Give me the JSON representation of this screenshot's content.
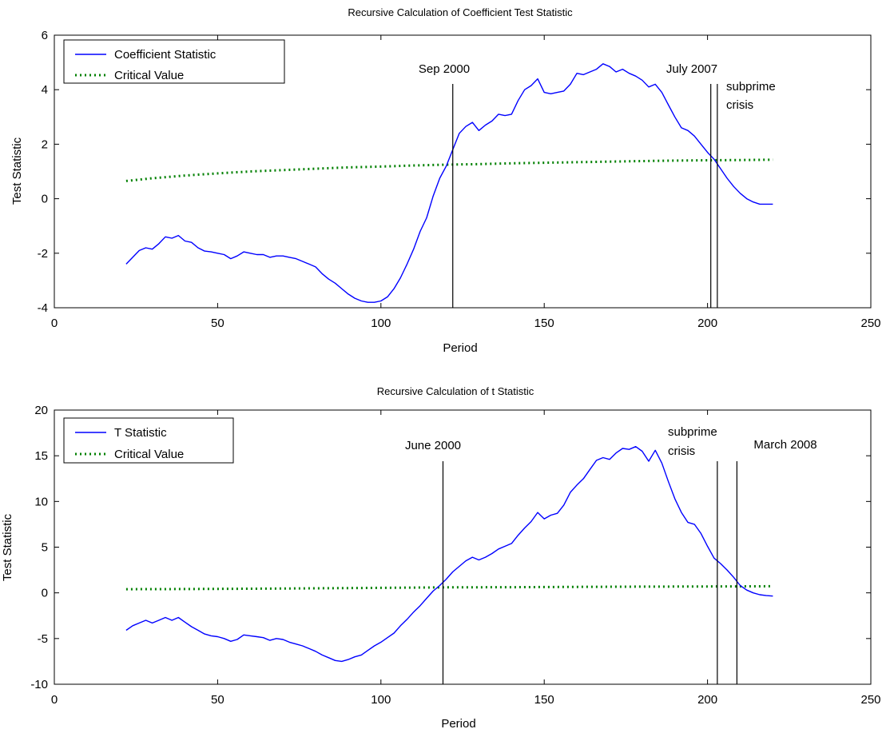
{
  "chart_data": [
    {
      "type": "line",
      "title": "Recursive Calculation of Coefficient Test Statistic",
      "xlabel": "Period",
      "ylabel": "Test Statistic",
      "xlim": [
        0,
        250
      ],
      "ylim": [
        -4,
        6
      ],
      "xticks": [
        0,
        50,
        100,
        150,
        200,
        250
      ],
      "yticks": [
        -4,
        -2,
        0,
        2,
        4,
        6
      ],
      "legend_position": "top-left",
      "series": [
        {
          "name": "Coefficient Statistic",
          "color": "#0000ff",
          "style": "solid",
          "points": [
            [
              22,
              -2.4
            ],
            [
              24,
              -2.15
            ],
            [
              26,
              -1.9
            ],
            [
              28,
              -1.8
            ],
            [
              30,
              -1.85
            ],
            [
              32,
              -1.65
            ],
            [
              34,
              -1.4
            ],
            [
              36,
              -1.45
            ],
            [
              38,
              -1.35
            ],
            [
              40,
              -1.55
            ],
            [
              42,
              -1.6
            ],
            [
              44,
              -1.8
            ],
            [
              46,
              -1.92
            ],
            [
              48,
              -1.95
            ],
            [
              50,
              -2.0
            ],
            [
              52,
              -2.05
            ],
            [
              54,
              -2.2
            ],
            [
              56,
              -2.1
            ],
            [
              58,
              -1.95
            ],
            [
              60,
              -2.0
            ],
            [
              62,
              -2.05
            ],
            [
              64,
              -2.05
            ],
            [
              66,
              -2.15
            ],
            [
              68,
              -2.1
            ],
            [
              70,
              -2.1
            ],
            [
              72,
              -2.15
            ],
            [
              74,
              -2.2
            ],
            [
              76,
              -2.3
            ],
            [
              78,
              -2.4
            ],
            [
              80,
              -2.5
            ],
            [
              82,
              -2.75
            ],
            [
              84,
              -2.95
            ],
            [
              86,
              -3.1
            ],
            [
              88,
              -3.3
            ],
            [
              90,
              -3.5
            ],
            [
              92,
              -3.65
            ],
            [
              94,
              -3.75
            ],
            [
              96,
              -3.8
            ],
            [
              98,
              -3.8
            ],
            [
              100,
              -3.75
            ],
            [
              102,
              -3.6
            ],
            [
              104,
              -3.3
            ],
            [
              106,
              -2.9
            ],
            [
              108,
              -2.4
            ],
            [
              110,
              -1.85
            ],
            [
              112,
              -1.2
            ],
            [
              114,
              -0.7
            ],
            [
              116,
              0.1
            ],
            [
              118,
              0.75
            ],
            [
              120,
              1.2
            ],
            [
              122,
              1.8
            ],
            [
              124,
              2.4
            ],
            [
              126,
              2.65
            ],
            [
              128,
              2.8
            ],
            [
              130,
              2.5
            ],
            [
              132,
              2.7
            ],
            [
              134,
              2.85
            ],
            [
              136,
              3.1
            ],
            [
              138,
              3.05
            ],
            [
              140,
              3.1
            ],
            [
              142,
              3.6
            ],
            [
              144,
              4.0
            ],
            [
              146,
              4.15
            ],
            [
              148,
              4.4
            ],
            [
              150,
              3.9
            ],
            [
              152,
              3.85
            ],
            [
              154,
              3.9
            ],
            [
              156,
              3.95
            ],
            [
              158,
              4.2
            ],
            [
              160,
              4.6
            ],
            [
              162,
              4.55
            ],
            [
              164,
              4.65
            ],
            [
              166,
              4.75
            ],
            [
              168,
              4.95
            ],
            [
              170,
              4.85
            ],
            [
              172,
              4.65
            ],
            [
              174,
              4.75
            ],
            [
              176,
              4.6
            ],
            [
              178,
              4.5
            ],
            [
              180,
              4.35
            ],
            [
              182,
              4.1
            ],
            [
              184,
              4.2
            ],
            [
              186,
              3.9
            ],
            [
              188,
              3.45
            ],
            [
              190,
              3.0
            ],
            [
              192,
              2.6
            ],
            [
              194,
              2.5
            ],
            [
              196,
              2.3
            ],
            [
              198,
              2.0
            ],
            [
              200,
              1.7
            ],
            [
              202,
              1.45
            ],
            [
              204,
              1.1
            ],
            [
              206,
              0.75
            ],
            [
              208,
              0.45
            ],
            [
              210,
              0.2
            ],
            [
              212,
              0.0
            ],
            [
              214,
              -0.12
            ],
            [
              216,
              -0.2
            ],
            [
              218,
              -0.2
            ],
            [
              220,
              -0.2
            ]
          ]
        },
        {
          "name": "Critical Value",
          "color": "#008000",
          "style": "dotted",
          "points": [
            [
              22,
              0.65
            ],
            [
              30,
              0.75
            ],
            [
              40,
              0.85
            ],
            [
              50,
              0.93
            ],
            [
              60,
              1.0
            ],
            [
              70,
              1.05
            ],
            [
              80,
              1.1
            ],
            [
              90,
              1.15
            ],
            [
              100,
              1.18
            ],
            [
              110,
              1.22
            ],
            [
              120,
              1.25
            ],
            [
              130,
              1.27
            ],
            [
              140,
              1.3
            ],
            [
              150,
              1.32
            ],
            [
              160,
              1.34
            ],
            [
              170,
              1.36
            ],
            [
              180,
              1.38
            ],
            [
              190,
              1.4
            ],
            [
              200,
              1.41
            ],
            [
              210,
              1.42
            ],
            [
              220,
              1.43
            ]
          ]
        }
      ],
      "vlines": [
        {
          "x": 122,
          "label": "Sep 2000"
        },
        {
          "x": 201
        },
        {
          "x": 203
        }
      ],
      "annotations": [
        {
          "text": "Sep 2000",
          "x": 122
        },
        {
          "text": "July 2007",
          "x": 201
        },
        {
          "text": "subprime",
          "x": 203
        },
        {
          "text": "crisis",
          "x": 203
        }
      ]
    },
    {
      "type": "line",
      "title": "Recursive Calculation of t Statistic",
      "xlabel": "Period",
      "ylabel": "Test Statistic",
      "xlim": [
        0,
        250
      ],
      "ylim": [
        -10,
        20
      ],
      "xticks": [
        0,
        50,
        100,
        150,
        200,
        250
      ],
      "yticks": [
        -10,
        -5,
        0,
        5,
        10,
        15,
        20
      ],
      "legend_position": "top-left",
      "series": [
        {
          "name": "T Statistic",
          "color": "#0000ff",
          "style": "solid",
          "points": [
            [
              22,
              -4.1
            ],
            [
              24,
              -3.6
            ],
            [
              26,
              -3.3
            ],
            [
              28,
              -3.0
            ],
            [
              30,
              -3.3
            ],
            [
              32,
              -3.0
            ],
            [
              34,
              -2.7
            ],
            [
              36,
              -3.0
            ],
            [
              38,
              -2.7
            ],
            [
              40,
              -3.2
            ],
            [
              42,
              -3.7
            ],
            [
              44,
              -4.1
            ],
            [
              46,
              -4.5
            ],
            [
              48,
              -4.7
            ],
            [
              50,
              -4.8
            ],
            [
              52,
              -5.0
            ],
            [
              54,
              -5.3
            ],
            [
              56,
              -5.1
            ],
            [
              58,
              -4.6
            ],
            [
              60,
              -4.7
            ],
            [
              62,
              -4.8
            ],
            [
              64,
              -4.9
            ],
            [
              66,
              -5.2
            ],
            [
              68,
              -5.0
            ],
            [
              70,
              -5.1
            ],
            [
              72,
              -5.4
            ],
            [
              74,
              -5.6
            ],
            [
              76,
              -5.8
            ],
            [
              78,
              -6.1
            ],
            [
              80,
              -6.4
            ],
            [
              82,
              -6.8
            ],
            [
              84,
              -7.1
            ],
            [
              86,
              -7.4
            ],
            [
              88,
              -7.5
            ],
            [
              90,
              -7.3
            ],
            [
              92,
              -7.0
            ],
            [
              94,
              -6.8
            ],
            [
              96,
              -6.3
            ],
            [
              98,
              -5.8
            ],
            [
              100,
              -5.4
            ],
            [
              102,
              -4.9
            ],
            [
              104,
              -4.4
            ],
            [
              106,
              -3.6
            ],
            [
              108,
              -2.9
            ],
            [
              110,
              -2.1
            ],
            [
              112,
              -1.4
            ],
            [
              114,
              -0.6
            ],
            [
              116,
              0.2
            ],
            [
              118,
              0.8
            ],
            [
              120,
              1.5
            ],
            [
              122,
              2.3
            ],
            [
              124,
              2.9
            ],
            [
              126,
              3.5
            ],
            [
              128,
              3.9
            ],
            [
              130,
              3.6
            ],
            [
              132,
              3.9
            ],
            [
              134,
              4.3
            ],
            [
              136,
              4.8
            ],
            [
              138,
              5.1
            ],
            [
              140,
              5.4
            ],
            [
              142,
              6.3
            ],
            [
              144,
              7.1
            ],
            [
              146,
              7.8
            ],
            [
              148,
              8.8
            ],
            [
              150,
              8.1
            ],
            [
              152,
              8.5
            ],
            [
              154,
              8.7
            ],
            [
              156,
              9.6
            ],
            [
              158,
              11.0
            ],
            [
              160,
              11.8
            ],
            [
              162,
              12.5
            ],
            [
              164,
              13.5
            ],
            [
              166,
              14.5
            ],
            [
              168,
              14.8
            ],
            [
              170,
              14.6
            ],
            [
              172,
              15.3
            ],
            [
              174,
              15.8
            ],
            [
              176,
              15.7
            ],
            [
              178,
              16.0
            ],
            [
              180,
              15.5
            ],
            [
              182,
              14.4
            ],
            [
              184,
              15.6
            ],
            [
              186,
              14.2
            ],
            [
              188,
              12.2
            ],
            [
              190,
              10.3
            ],
            [
              192,
              8.8
            ],
            [
              194,
              7.7
            ],
            [
              196,
              7.5
            ],
            [
              198,
              6.5
            ],
            [
              200,
              5.1
            ],
            [
              202,
              3.8
            ],
            [
              204,
              3.2
            ],
            [
              206,
              2.5
            ],
            [
              208,
              1.7
            ],
            [
              210,
              0.8
            ],
            [
              212,
              0.3
            ],
            [
              214,
              0.0
            ],
            [
              216,
              -0.2
            ],
            [
              218,
              -0.3
            ],
            [
              220,
              -0.35
            ]
          ]
        },
        {
          "name": "Critical Value",
          "color": "#008000",
          "style": "dotted",
          "points": [
            [
              22,
              0.4
            ],
            [
              40,
              0.42
            ],
            [
              60,
              0.45
            ],
            [
              80,
              0.5
            ],
            [
              100,
              0.55
            ],
            [
              120,
              0.6
            ],
            [
              140,
              0.62
            ],
            [
              160,
              0.65
            ],
            [
              180,
              0.68
            ],
            [
              200,
              0.7
            ],
            [
              220,
              0.72
            ]
          ]
        }
      ],
      "vlines": [
        {
          "x": 119,
          "label": "June 2000"
        },
        {
          "x": 203
        },
        {
          "x": 209
        }
      ],
      "annotations": [
        {
          "text": "June 2000",
          "x": 119
        },
        {
          "text": "subprime",
          "x": 203
        },
        {
          "text": "crisis",
          "x": 203
        },
        {
          "text": "March 2008",
          "x": 209
        }
      ]
    }
  ]
}
